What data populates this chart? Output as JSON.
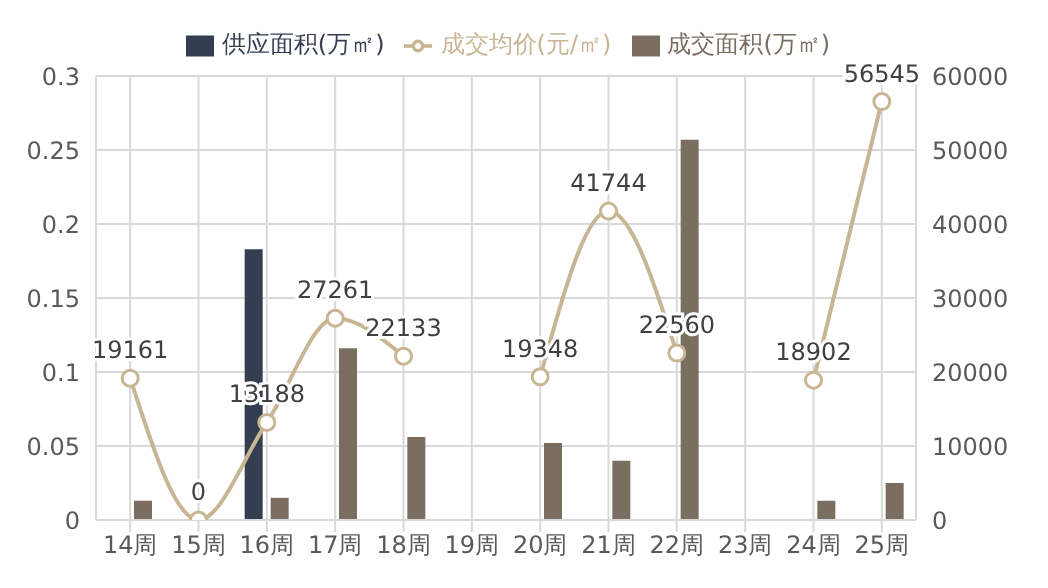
{
  "chart_data": {
    "type": "bar",
    "categories": [
      "14周",
      "15周",
      "16周",
      "17周",
      "18周",
      "19周",
      "20周",
      "21周",
      "22周",
      "23周",
      "24周",
      "25周"
    ],
    "series": [
      {
        "name": "供应面积(万㎡)",
        "color": "#333f50",
        "values": [
          null,
          null,
          0.183,
          null,
          null,
          null,
          null,
          null,
          null,
          null,
          null,
          null
        ]
      },
      {
        "name": "成交面积(万㎡)",
        "color": "#7a6e60",
        "values": [
          0.013,
          null,
          0.015,
          0.116,
          0.056,
          null,
          0.052,
          0.04,
          0.257,
          null,
          0.013,
          0.025
        ]
      },
      {
        "name": "成交均价(元/㎡)",
        "type": "line",
        "axis": "y2",
        "color": "#c8b593",
        "values": [
          19161,
          0,
          13188,
          27261,
          22133,
          null,
          19348,
          41744,
          22560,
          null,
          18902,
          56545
        ],
        "value_labels": [
          "19161",
          "0",
          "13188",
          "27261",
          "22133",
          null,
          "19348",
          "41744",
          "22560",
          null,
          "18902",
          "56545"
        ]
      }
    ],
    "ylim": [
      0,
      0.3
    ],
    "yticks": [
      0,
      0.05,
      0.1,
      0.15,
      0.2,
      0.25,
      0.3
    ],
    "y2lim": [
      0,
      60000
    ],
    "y2ticks": [
      0,
      10000,
      20000,
      30000,
      40000,
      50000,
      60000
    ],
    "grid": true,
    "legend": "top",
    "marker": "circle"
  }
}
